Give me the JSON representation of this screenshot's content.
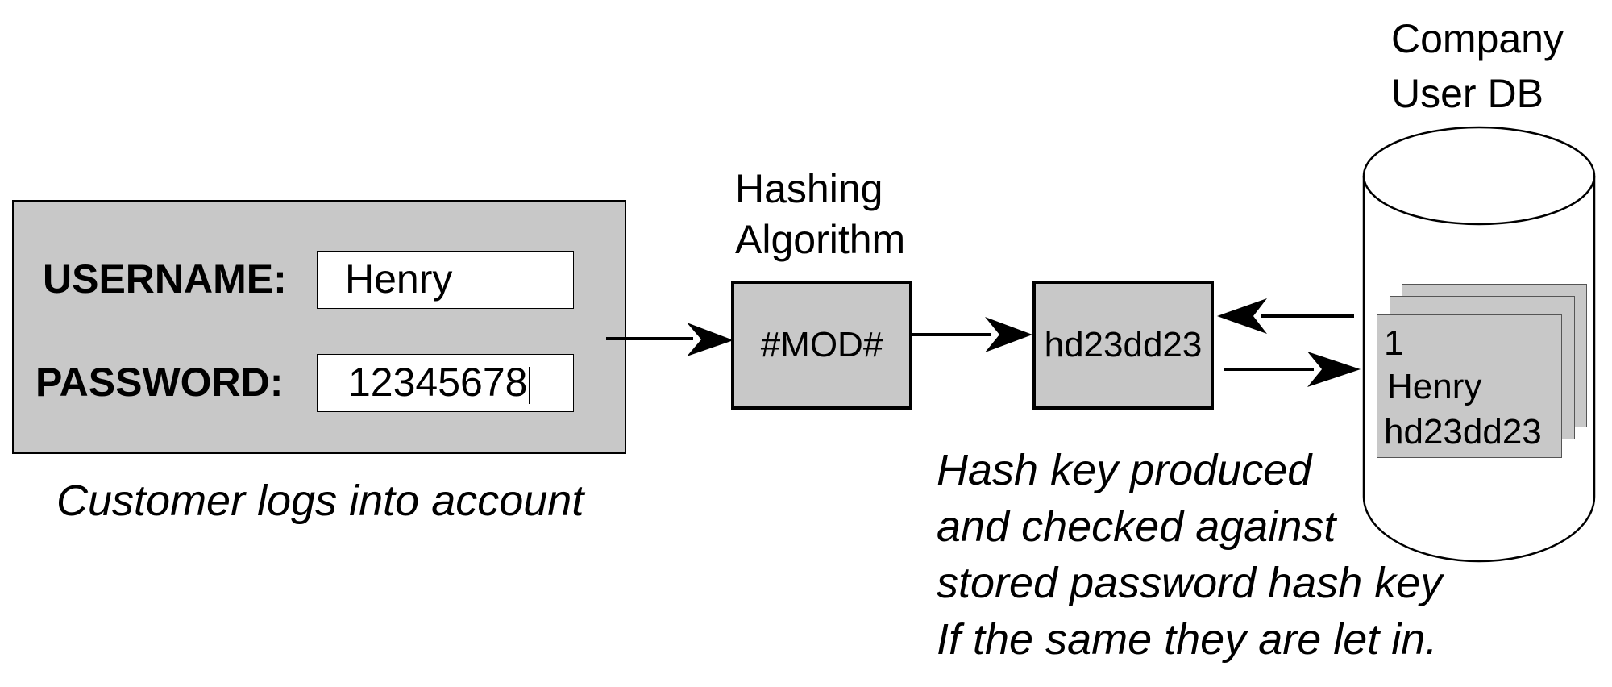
{
  "login_form": {
    "username_label": "USERNAME:",
    "username_value": "Henry",
    "password_label": "PASSWORD:",
    "password_value": "12345678",
    "caption": "Customer logs into account"
  },
  "hashing": {
    "title_line1": "Hashing",
    "title_line2": "Algorithm",
    "box_label": "#MOD#"
  },
  "hash_output": {
    "value": "hd23dd23"
  },
  "database": {
    "title_line1": "Company",
    "title_line2": "User DB",
    "record": {
      "id": "1",
      "name": "Henry",
      "hash": "hd23dd23"
    }
  },
  "note": {
    "lines": [
      "Hash key produced",
      "and checked against",
      "stored password hash key",
      "If the same they are let in."
    ]
  },
  "colors": {
    "panel_fill": "#c8c8c8",
    "stroke": "#000000",
    "background": "#ffffff"
  },
  "icons": {
    "database": "cylinder-icon",
    "arrow": "arrow-right-icon"
  }
}
